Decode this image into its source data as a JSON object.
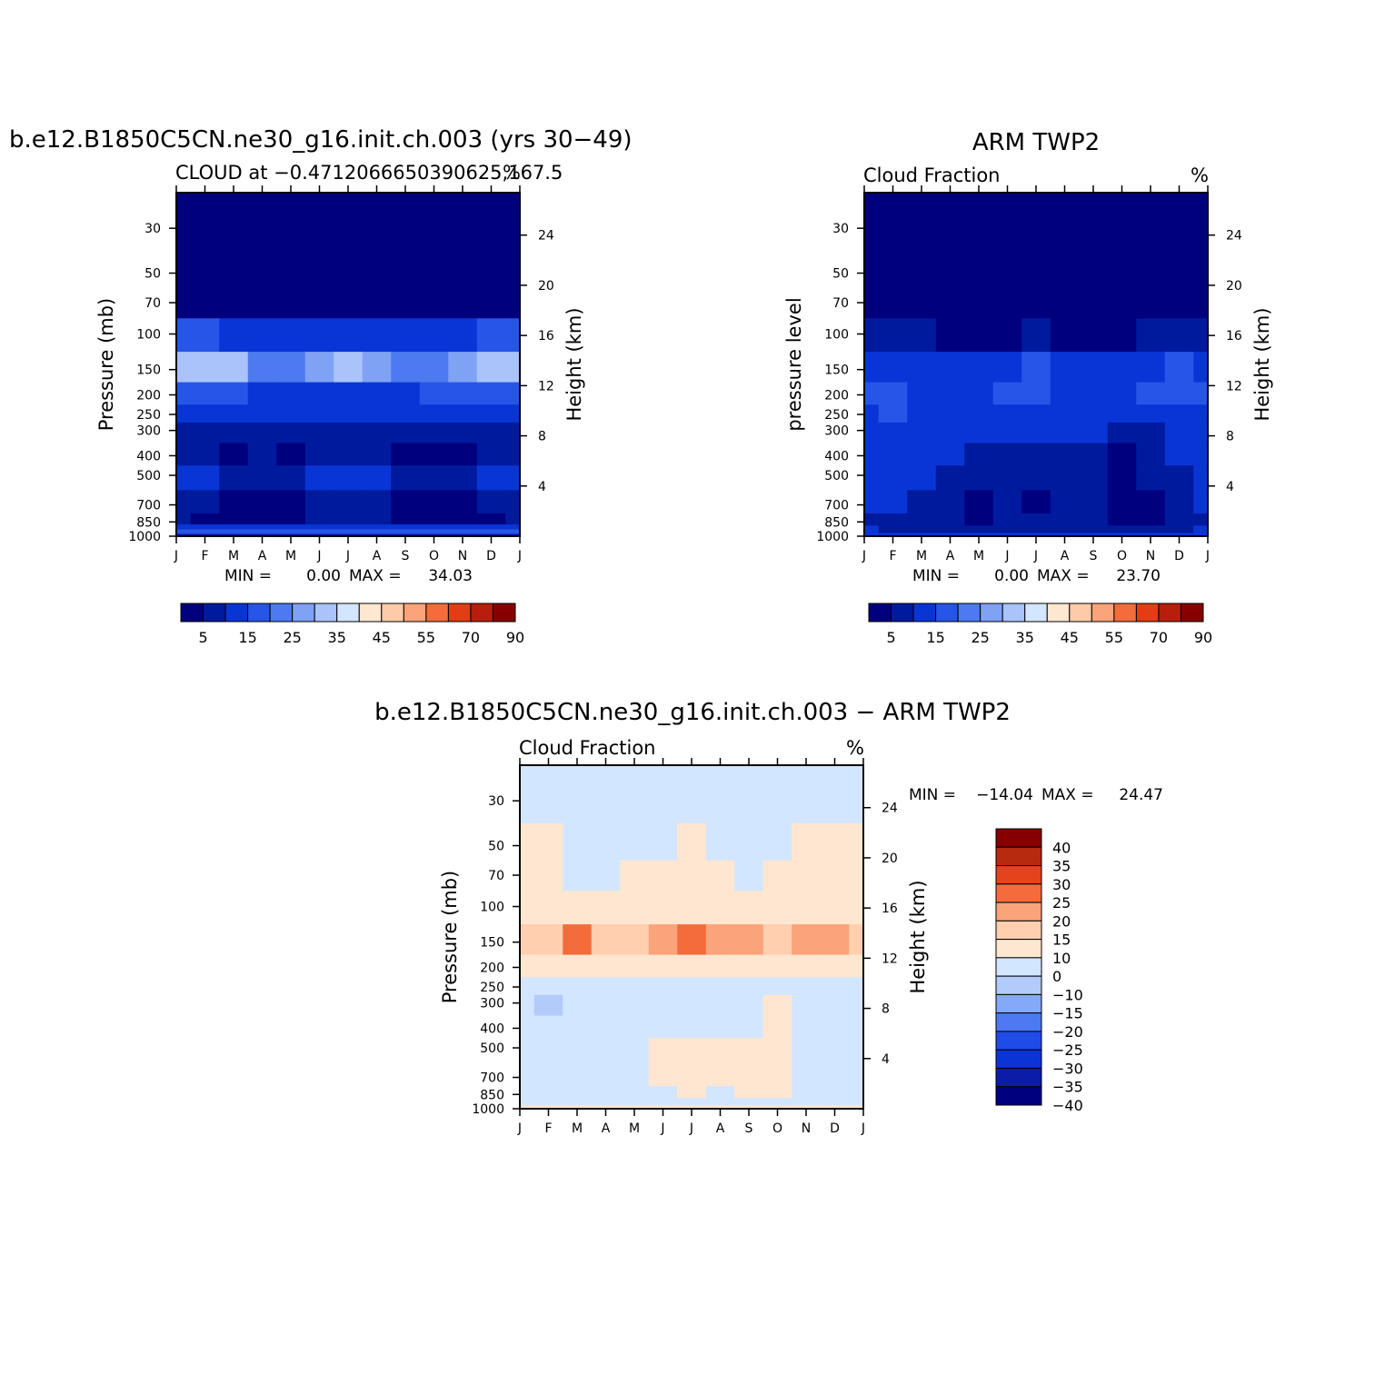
{
  "palettes": {
    "abs": [
      "#00007f",
      "#001a9e",
      "#0a35d6",
      "#2755e8",
      "#4d7af0",
      "#7fa2f5",
      "#aac3fa",
      "#d3e6ff",
      "#ffe7d1",
      "#ffcaa8",
      "#fba37a",
      "#f46c3b",
      "#e23d14",
      "#b81e0c",
      "#860000"
    ],
    "diff": [
      "#00007f",
      "#0a1ca8",
      "#0a35d6",
      "#1f4be6",
      "#4d7af0",
      "#86a8f8",
      "#b3cbfb",
      "#d3e6ff",
      "#ffe6d0",
      "#ffcfb0",
      "#fba37a",
      "#f46c3b",
      "#e5431b",
      "#b82a10",
      "#860000"
    ]
  },
  "chart_data": [
    {
      "id": "model",
      "type": "heatmap",
      "title": "b.e12.B1850C5CN.ne30_g16.init.ch.003 (yrs 30−49)",
      "subtitle": "CLOUD at −0.47120666503906​25,167.5",
      "units": "%",
      "ylabel": "Pressure (mb)",
      "ylabel2": "Height (km)",
      "months": [
        "J",
        "F",
        "M",
        "A",
        "M",
        "J",
        "J",
        "A",
        "S",
        "O",
        "N",
        "D",
        "J"
      ],
      "pressure_ticks": [
        30,
        50,
        70,
        100,
        150,
        200,
        250,
        300,
        400,
        500,
        700,
        850,
        1000
      ],
      "height_ticks": [
        24,
        20,
        16,
        12,
        8,
        4
      ],
      "stats": {
        "min_label": "MIN =",
        "min": "0.00",
        "max_label": "MAX =",
        "max": "34.03"
      },
      "colorbar": {
        "palette": "abs",
        "labels": [
          "5",
          "15",
          "25",
          "35",
          "45",
          "55",
          "70",
          "90"
        ]
      },
      "levels": [
        {
          "p": 1000,
          "values": [
            8,
            8,
            8,
            8,
            8,
            8,
            8,
            8,
            8,
            8,
            8,
            8,
            8
          ]
        },
        {
          "p": 950,
          "values": [
            18,
            18,
            18,
            18,
            18,
            18,
            18,
            18,
            18,
            18,
            18,
            18,
            18
          ]
        },
        {
          "p": 900,
          "values": [
            10,
            10,
            10,
            10,
            10,
            10,
            10,
            10,
            10,
            10,
            10,
            10,
            10
          ]
        },
        {
          "p": 850,
          "values": [
            6,
            4,
            3,
            3,
            3,
            6,
            7,
            6,
            4,
            4,
            4,
            4,
            6
          ]
        },
        {
          "p": 700,
          "values": [
            8,
            5,
            4,
            3,
            3,
            7,
            8,
            7,
            4,
            3,
            3,
            5,
            8
          ]
        },
        {
          "p": 500,
          "values": [
            13,
            10,
            9,
            9,
            9,
            11,
            13,
            11,
            9,
            9,
            9,
            10,
            13
          ]
        },
        {
          "p": 400,
          "values": [
            9,
            6,
            3,
            7,
            4,
            7,
            8,
            5,
            4,
            4,
            4,
            6,
            9
          ]
        },
        {
          "p": 300,
          "values": [
            8,
            8,
            8,
            7,
            7,
            8,
            8,
            8,
            7,
            8,
            8,
            8,
            8
          ]
        },
        {
          "p": 250,
          "values": [
            10,
            10,
            10,
            10,
            10,
            10,
            10,
            10,
            10,
            10,
            10,
            10,
            10
          ]
        },
        {
          "p": 200,
          "values": [
            18,
            17,
            15,
            14,
            13,
            12,
            12,
            13,
            14,
            15,
            17,
            18,
            18
          ]
        },
        {
          "p": 150,
          "values": [
            32,
            31,
            30,
            24,
            20,
            26,
            31,
            26,
            20,
            24,
            29,
            31,
            32
          ]
        },
        {
          "p": 100,
          "values": [
            18,
            16,
            14,
            12,
            10,
            10,
            11,
            10,
            10,
            12,
            14,
            16,
            18
          ]
        },
        {
          "p": 70,
          "values": [
            3,
            3,
            3,
            3,
            3,
            3,
            3,
            3,
            3,
            3,
            3,
            3,
            3
          ]
        },
        {
          "p": 50,
          "values": [
            1,
            1,
            1,
            1,
            1,
            1,
            1,
            1,
            1,
            1,
            1,
            1,
            1
          ]
        },
        {
          "p": 30,
          "values": [
            1,
            1,
            1,
            1,
            1,
            1,
            1,
            1,
            1,
            1,
            1,
            1,
            1
          ]
        }
      ]
    },
    {
      "id": "obs",
      "type": "heatmap",
      "title": "ARM TWP2",
      "subtitle": "Cloud Fraction",
      "units": "%",
      "ylabel": "pressure level",
      "ylabel2": "Height (km)",
      "months": [
        "J",
        "F",
        "M",
        "A",
        "M",
        "J",
        "J",
        "A",
        "S",
        "O",
        "N",
        "D",
        "J"
      ],
      "pressure_ticks": [
        30,
        50,
        70,
        100,
        150,
        200,
        250,
        300,
        400,
        500,
        700,
        850,
        1000
      ],
      "height_ticks": [
        24,
        20,
        16,
        12,
        8,
        4
      ],
      "stats": {
        "min_label": "MIN =",
        "min": "0.00",
        "max_label": "MAX =",
        "max": "23.70"
      },
      "colorbar": {
        "palette": "abs",
        "labels": [
          "5",
          "15",
          "25",
          "35",
          "45",
          "55",
          "70",
          "90"
        ]
      },
      "levels": [
        {
          "p": 1000,
          "values": [
            14,
            14,
            14,
            14,
            14,
            14,
            14,
            14,
            14,
            14,
            14,
            14,
            14
          ]
        },
        {
          "p": 925,
          "values": [
            12,
            9,
            9,
            9,
            9,
            9,
            9,
            9,
            9,
            9,
            9,
            9,
            12
          ]
        },
        {
          "p": 850,
          "values": [
            6,
            8,
            7,
            5,
            4,
            5,
            5,
            6,
            5,
            4,
            4,
            5,
            6
          ]
        },
        {
          "p": 700,
          "values": [
            12,
            10,
            7,
            6,
            4,
            6,
            4,
            6,
            5,
            3,
            4,
            6,
            10
          ]
        },
        {
          "p": 500,
          "values": [
            13,
            13,
            12,
            8,
            6,
            6,
            7,
            9,
            7,
            3,
            6,
            9,
            12
          ]
        },
        {
          "p": 400,
          "values": [
            12,
            13,
            12,
            10,
            8,
            7,
            7,
            8,
            7,
            4,
            7,
            11,
            12
          ]
        },
        {
          "p": 300,
          "values": [
            12,
            14,
            10,
            11,
            12,
            11,
            11,
            11,
            12,
            8,
            9,
            11,
            12
          ]
        },
        {
          "p": 250,
          "values": [
            14,
            15,
            12,
            13,
            13,
            13,
            13,
            12,
            13,
            12,
            13,
            14,
            14
          ]
        },
        {
          "p": 200,
          "values": [
            15,
            16,
            13,
            14,
            14,
            15,
            16,
            14,
            13,
            14,
            16,
            16,
            15
          ]
        },
        {
          "p": 150,
          "values": [
            14,
            14,
            13,
            13,
            13,
            14,
            15,
            13,
            10,
            11,
            14,
            15,
            14
          ]
        },
        {
          "p": 100,
          "values": [
            9,
            8,
            6,
            4,
            3,
            4,
            5,
            4,
            3,
            4,
            5,
            7,
            9
          ]
        },
        {
          "p": 70,
          "values": [
            2,
            2,
            2,
            2,
            2,
            2,
            2,
            2,
            2,
            2,
            2,
            2,
            2
          ]
        },
        {
          "p": 50,
          "values": [
            1,
            1,
            1,
            1,
            1,
            1,
            1,
            1,
            1,
            1,
            1,
            1,
            1
          ]
        },
        {
          "p": 30,
          "values": [
            1,
            1,
            1,
            1,
            1,
            1,
            1,
            1,
            1,
            1,
            1,
            1,
            1
          ]
        }
      ]
    },
    {
      "id": "diff",
      "type": "heatmap",
      "title": "b.e12.B1850C5CN.ne30_g16.init.ch.003 − ARM TWP2",
      "subtitle": "Cloud Fraction",
      "units": "%",
      "ylabel": "Pressure (mb)",
      "ylabel2": "Height (km)",
      "months": [
        "J",
        "F",
        "M",
        "A",
        "M",
        "J",
        "J",
        "A",
        "S",
        "O",
        "N",
        "D",
        "J"
      ],
      "pressure_ticks": [
        30,
        50,
        70,
        100,
        150,
        200,
        250,
        300,
        400,
        500,
        700,
        850,
        1000
      ],
      "height_ticks": [
        24,
        20,
        16,
        12,
        8,
        4
      ],
      "stats": {
        "min_label": "MIN =",
        "min": "−14.04",
        "max_label": "MAX =",
        "max": "24.47"
      },
      "colorbar": {
        "palette": "diff",
        "labels": [
          "40",
          "35",
          "30",
          "25",
          "20",
          "15",
          "10",
          "0",
          "−10",
          "−15",
          "−20",
          "−25",
          "−30",
          "−35",
          "−40"
        ]
      },
      "levels": [
        {
          "p": 1000,
          "values": [
            3,
            3,
            3,
            3,
            3,
            3,
            3,
            3,
            3,
            3,
            3,
            3,
            3
          ]
        },
        {
          "p": 925,
          "values": [
            -2,
            -2,
            -2,
            -2,
            -2,
            -2,
            -2,
            -2,
            -2,
            -2,
            -2,
            -2,
            -2
          ]
        },
        {
          "p": 850,
          "values": [
            -3,
            -4,
            -4,
            -3,
            -2,
            -1,
            1,
            -1,
            2,
            3,
            -2,
            -3,
            -3
          ]
        },
        {
          "p": 700,
          "values": [
            -4,
            -5,
            -5,
            -4,
            -1,
            2,
            3,
            2,
            2,
            4,
            -2,
            -4,
            -4
          ]
        },
        {
          "p": 500,
          "values": [
            -3,
            -5,
            -6,
            -4,
            -2,
            3,
            3,
            1,
            3,
            4,
            -2,
            -4,
            -3
          ]
        },
        {
          "p": 400,
          "values": [
            -5,
            -9,
            -6,
            -5,
            -4,
            -2,
            -2,
            -3,
            -1,
            2,
            -3,
            -4,
            -5
          ]
        },
        {
          "p": 300,
          "values": [
            -4,
            -12,
            -5,
            -5,
            -4,
            -4,
            -4,
            -4,
            -4,
            1,
            -3,
            -4,
            -4
          ]
        },
        {
          "p": 250,
          "values": [
            -3,
            -4,
            -3,
            -2,
            -3,
            -3,
            -3,
            -3,
            -2,
            -2,
            -3,
            -3,
            -3
          ]
        },
        {
          "p": 200,
          "values": [
            3,
            2,
            2,
            1,
            1,
            1,
            2,
            2,
            1,
            2,
            2,
            3,
            3
          ]
        },
        {
          "p": 150,
          "values": [
            12,
            13,
            22,
            14,
            11,
            19,
            20,
            15,
            18,
            12,
            15,
            19,
            12
          ]
        },
        {
          "p": 100,
          "values": [
            7,
            7,
            8,
            7,
            6,
            6,
            6,
            6,
            6,
            7,
            7,
            7,
            7
          ]
        },
        {
          "p": 70,
          "values": [
            2,
            2,
            -1,
            -2,
            2,
            1,
            3,
            2,
            -1,
            1,
            2,
            2,
            2
          ]
        },
        {
          "p": 50,
          "values": [
            1,
            1,
            -2,
            -3,
            -1,
            -1,
            2,
            -1,
            -3,
            -1,
            1,
            1,
            1
          ]
        },
        {
          "p": 30,
          "values": [
            -2,
            -2,
            -2,
            -2,
            -2,
            -2,
            -2,
            -2,
            -2,
            -2,
            -2,
            -2,
            -2
          ]
        }
      ]
    }
  ]
}
